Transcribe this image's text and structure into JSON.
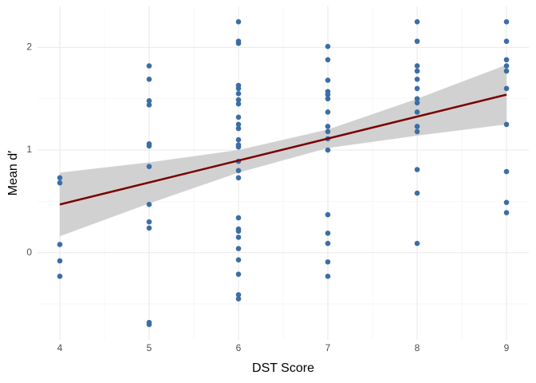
{
  "chart_data": {
    "type": "scatter",
    "x_label": "DST Score",
    "y_label": "Mean d′",
    "xlim": [
      3.75,
      9.25
    ],
    "ylim": [
      -0.85,
      2.4
    ],
    "xticks": [
      4,
      5,
      6,
      7,
      8,
      9
    ],
    "yticks": [
      0,
      1,
      2
    ],
    "x_minor_ticks": [
      4.5,
      5.5,
      6.5,
      7.5,
      8.5
    ],
    "y_minor_ticks": [
      -0.5,
      0.5,
      1.5
    ],
    "grid": true,
    "point_color": "#3b6ea5",
    "line_color": "#7a0000",
    "band_color": "#cccccc",
    "points": {
      "x": [
        4,
        4,
        4,
        4,
        4,
        5,
        5,
        5,
        5,
        5,
        5,
        5,
        5,
        5,
        5,
        5,
        5,
        6,
        6,
        6,
        6,
        6,
        6,
        6,
        6,
        6,
        6,
        6,
        6,
        6,
        6,
        6,
        6,
        6,
        6,
        6,
        6,
        6,
        6,
        6,
        6,
        6,
        6,
        7,
        7,
        7,
        7,
        7,
        7,
        7,
        7,
        7,
        7,
        7,
        7,
        7,
        7,
        7,
        7,
        8,
        8,
        8,
        8,
        8,
        8,
        8,
        8,
        8,
        8,
        8,
        8,
        8,
        8,
        9,
        9,
        9,
        9,
        9,
        9,
        9,
        9,
        9,
        9
      ],
      "y": [
        0.73,
        0.68,
        0.08,
        -0.08,
        -0.23,
        1.82,
        1.69,
        1.48,
        1.44,
        1.06,
        1.04,
        0.84,
        0.47,
        0.3,
        0.24,
        -0.68,
        -0.7,
        2.25,
        2.06,
        2.04,
        1.63,
        1.6,
        1.55,
        1.49,
        1.45,
        1.32,
        1.25,
        1.21,
        1.1,
        1.05,
        1.03,
        0.89,
        0.8,
        0.73,
        0.34,
        0.23,
        0.21,
        0.15,
        0.04,
        -0.07,
        -0.21,
        -0.41,
        -0.45,
        2.01,
        1.88,
        1.68,
        1.57,
        1.54,
        1.5,
        1.37,
        1.23,
        1.18,
        1.11,
        1.0,
        0.37,
        0.19,
        0.09,
        -0.09,
        -0.23,
        2.25,
        2.06,
        1.82,
        1.77,
        1.69,
        1.6,
        1.5,
        1.46,
        1.37,
        1.23,
        1.18,
        0.81,
        0.58,
        0.09,
        2.25,
        2.06,
        1.88,
        1.82,
        1.77,
        1.6,
        1.25,
        0.79,
        0.49,
        0.39
      ]
    },
    "fit": {
      "x": [
        4,
        9
      ],
      "y": [
        0.47,
        1.54
      ]
    },
    "band": {
      "x": [
        4,
        5,
        6,
        7,
        8,
        9
      ],
      "lower": [
        0.16,
        0.48,
        0.78,
        1.02,
        1.14,
        1.25
      ],
      "upper": [
        0.78,
        0.88,
        1.0,
        1.2,
        1.5,
        1.83
      ]
    }
  }
}
